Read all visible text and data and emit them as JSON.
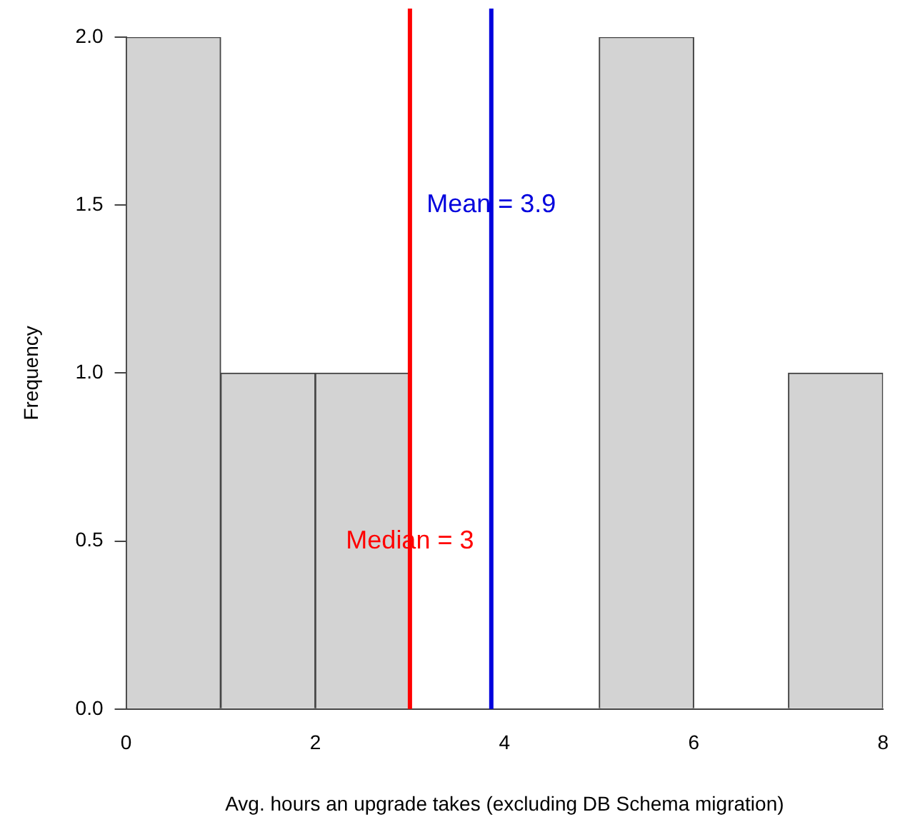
{
  "chart_data": {
    "type": "histogram",
    "xlabel": "Avg. hours an upgrade takes (excluding DB Schema migration)",
    "ylabel": "Frequency",
    "bins": [
      0,
      1,
      2,
      3,
      4,
      5,
      6,
      7,
      8
    ],
    "values": [
      2,
      1,
      1,
      0,
      0,
      2,
      0,
      1
    ],
    "color": "#d3d3d3",
    "xlim": [
      0,
      8
    ],
    "xticks": [
      0,
      2,
      4,
      6,
      8
    ],
    "ylim": [
      0,
      2
    ],
    "yticks": [
      {
        "value": 0,
        "label": "0.0"
      },
      {
        "value": 0.5,
        "label": "0.5"
      },
      {
        "value": 1,
        "label": "1.0"
      },
      {
        "value": 1.5,
        "label": "1.5"
      },
      {
        "value": 2,
        "label": "2.0"
      }
    ],
    "grid": false,
    "legend": false,
    "ref_lines": [
      {
        "axis": "x",
        "value": 3,
        "label": "Median = 3",
        "color": "#ff0000"
      },
      {
        "axis": "x",
        "value": 3.86,
        "label": "Mean = 3.9",
        "color": "#0000dd"
      }
    ]
  }
}
